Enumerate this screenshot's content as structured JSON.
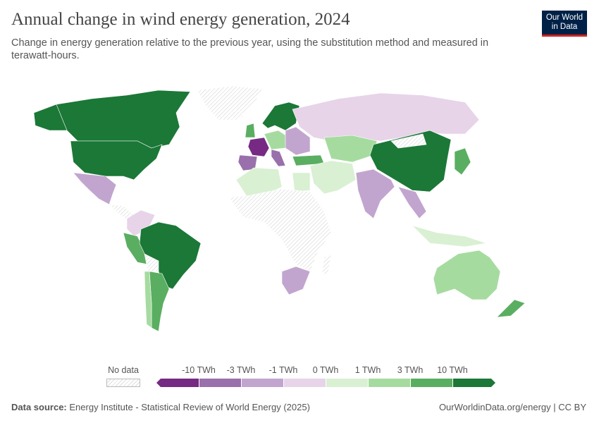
{
  "header": {
    "title": "Annual change in wind energy generation, 2024",
    "subtitle": "Change in energy generation relative to the previous year, using the substitution method and measured in terawatt-hours.",
    "logo": "Our World in Data"
  },
  "legend": {
    "no_data_label": "No data",
    "bins": [
      {
        "label": "-10 TWh",
        "color": "#762a83"
      },
      {
        "label": "-3 TWh",
        "color": "#9970ab"
      },
      {
        "label": "-1 TWh",
        "color": "#c2a5cf"
      },
      {
        "label": "0 TWh",
        "color": "#e7d4e8"
      },
      {
        "label": "1 TWh",
        "color": "#d9f0d3"
      },
      {
        "label": "3 TWh",
        "color": "#a6dba0"
      },
      {
        "label": "10 TWh",
        "color": "#5aae61"
      },
      {
        "label": "",
        "color": "#1b7837"
      }
    ]
  },
  "map": {
    "type": "choropleth",
    "regions": {
      "Canada": ">10 TWh",
      "United States": ">10 TWh",
      "Brazil": ">10 TWh",
      "China": ">10 TWh",
      "Sweden": ">10 TWh",
      "Finland": ">10 TWh",
      "France": "< -10 TWh",
      "Spain": "-10 to -3 TWh",
      "India": "-3 to -1 TWh",
      "Mexico": "-3 to -1 TWh",
      "South Africa": "-3 to -1 TWh",
      "Russia": "-1 to 0 TWh",
      "Australia": "1 to 3 TWh",
      "Argentina": "3 to 10 TWh",
      "Peru": "3 to 10 TWh",
      "Kazakhstan": "1 to 3 TWh",
      "Algeria": "0 to 1 TWh",
      "Greenland": "No data"
    }
  },
  "footer": {
    "source_label": "Data source:",
    "source": "Energy Institute - Statistical Review of World Energy (2025)",
    "link": "OurWorldinData.org/energy | CC BY"
  }
}
